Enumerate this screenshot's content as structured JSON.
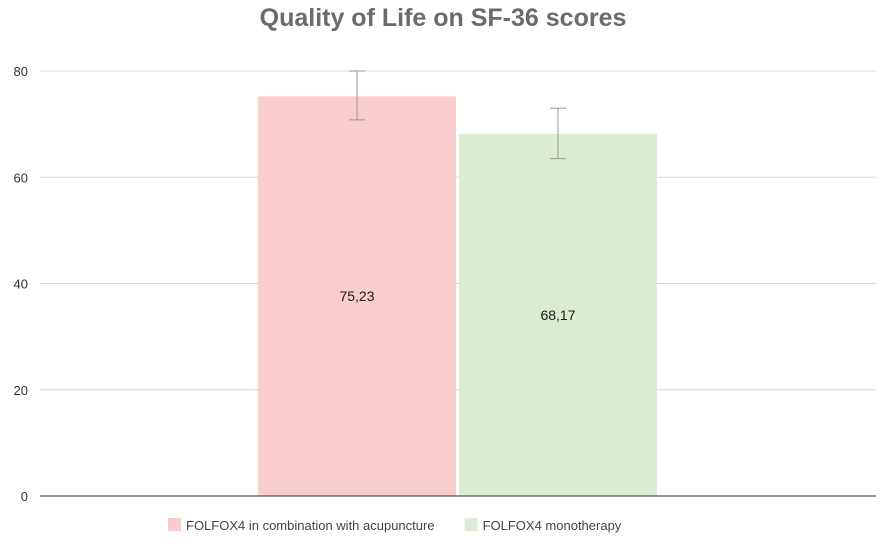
{
  "chart_data": {
    "type": "bar",
    "title": "Quality of Life on SF-36 scores",
    "xlabel": "",
    "ylabel": "",
    "ylim": [
      0,
      80
    ],
    "yticks": [
      0,
      20,
      40,
      60,
      80
    ],
    "grid": true,
    "legend_position": "bottom",
    "series": [
      {
        "name": "FOLFOX4 in combination with acupuncture",
        "value": 75.23,
        "label": "75,23",
        "error_low": 70.8,
        "error_high": 80.0,
        "color": "#f9cccd"
      },
      {
        "name": "FOLFOX4 monotherapy",
        "value": 68.17,
        "label": "68,17",
        "error_low": 63.5,
        "error_high": 73.0,
        "color": "#dbecd2"
      }
    ],
    "colors": {
      "gridline": "#d8d8d8",
      "axis": "#555555",
      "error_bar": "#9a9a9a"
    }
  }
}
